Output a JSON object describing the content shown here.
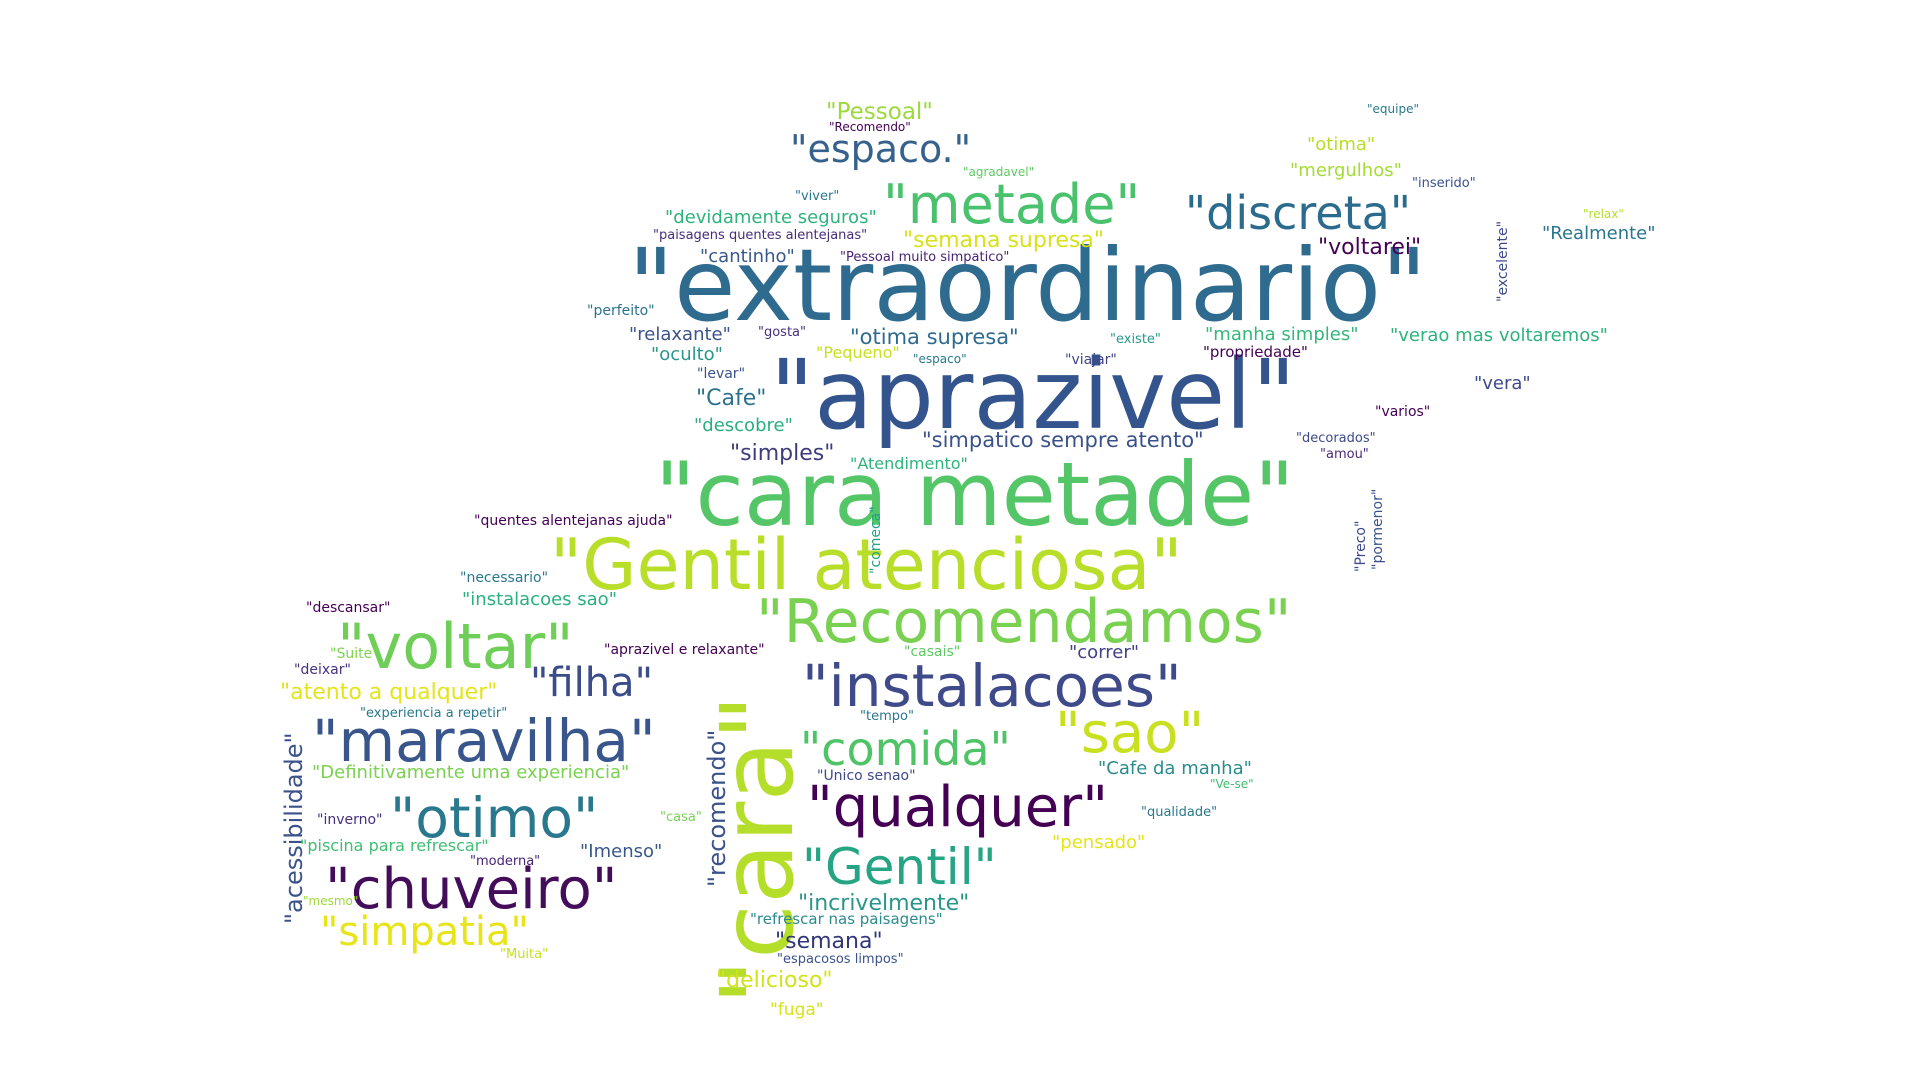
{
  "words": [
    {
      "text": "\"extraordinario\"",
      "color": "#2f6b8e"
    },
    {
      "text": "\"aprazivel\"",
      "color": "#33548c"
    },
    {
      "text": "\"cara metade\"",
      "color": "#55c667"
    },
    {
      "text": "\"Gentil atenciosa\"",
      "color": "#b8de29"
    },
    {
      "text": "\"Recomendamos\"",
      "color": "#7ad151"
    },
    {
      "text": "\"cara\"",
      "color": "#b5de2b"
    },
    {
      "text": "\"voltar\"",
      "color": "#6ece58"
    },
    {
      "text": "\"instalacoes\"",
      "color": "#3e4a89"
    },
    {
      "text": "\"maravilha\"",
      "color": "#39568c"
    },
    {
      "text": "\"qualquer\"",
      "color": "#440154"
    },
    {
      "text": "\"chuveiro\"",
      "color": "#440d5a"
    },
    {
      "text": "\"otimo\"",
      "color": "#2a788e"
    },
    {
      "text": "\"metade\"",
      "color": "#4ac16d"
    },
    {
      "text": "\"Gentil\"",
      "color": "#25a584"
    },
    {
      "text": "\"sao\"",
      "color": "#c8e020"
    },
    {
      "text": "\"discreta\"",
      "color": "#2b6b8e"
    },
    {
      "text": "\"comida\"",
      "color": "#4fc466"
    },
    {
      "text": "\"simpatia\"",
      "color": "#e7e419"
    },
    {
      "text": "\"filha\"",
      "color": "#3a4c8a"
    },
    {
      "text": "\"espaco.\"",
      "color": "#36618d"
    },
    {
      "text": "\"acessibilidade\"",
      "color": "#3b528b"
    },
    {
      "text": "\"recomendo\"",
      "color": "#3b528b"
    },
    {
      "text": "\"Pessoal\"",
      "color": "#9bd93c"
    },
    {
      "text": "\"incrivelmente\"",
      "color": "#2a968b"
    },
    {
      "text": "\"semana\"",
      "color": "#31357a"
    },
    {
      "text": "\"delicioso\"",
      "color": "#d2e21b"
    },
    {
      "text": "\"atento a qualquer\"",
      "color": "#e5e419"
    },
    {
      "text": "\"Cafe\"",
      "color": "#2c728e"
    },
    {
      "text": "\"simples\"",
      "color": "#3e3c7e"
    },
    {
      "text": "\"otima supresa\"",
      "color": "#2f6b8e"
    },
    {
      "text": "\"voltarei\"",
      "color": "#440256"
    },
    {
      "text": "\"semana supresa\"",
      "color": "#d8e219"
    },
    {
      "text": "\"simpatico sempre atento\"",
      "color": "#3a5289"
    },
    {
      "text": "\"Definitivamente uma experiencia\"",
      "color": "#7ad151"
    },
    {
      "text": "\"Cafe da manha\"",
      "color": "#2a8b8e"
    },
    {
      "text": "\"Imenso\"",
      "color": "#38588c"
    },
    {
      "text": "\"otima\"",
      "color": "#b8de29"
    },
    {
      "text": "\"mergulhos\"",
      "color": "#a5db36"
    },
    {
      "text": "\"devidamente seguros\"",
      "color": "#2eb37c"
    },
    {
      "text": "\"cantinho\"",
      "color": "#38588c"
    },
    {
      "text": "\"relaxante\"",
      "color": "#3b528b"
    },
    {
      "text": "\"oculto\"",
      "color": "#2a968b"
    },
    {
      "text": "\"manha simples\"",
      "color": "#35b779"
    },
    {
      "text": "\"verao mas voltaremos\"",
      "color": "#2db27d"
    },
    {
      "text": "\"Realmente\"",
      "color": "#2a768e"
    },
    {
      "text": "\"vera\"",
      "color": "#3e4989"
    },
    {
      "text": "\"descobre\"",
      "color": "#29af7f"
    },
    {
      "text": "\"instalacoes sao\"",
      "color": "#2ab07f"
    },
    {
      "text": "\"correr\"",
      "color": "#424086"
    },
    {
      "text": "\"pensado\"",
      "color": "#e5e419"
    },
    {
      "text": "\"piscina para refrescar\"",
      "color": "#40bd72"
    },
    {
      "text": "\"refrescar nas paisagens\"",
      "color": "#2c8a8e"
    },
    {
      "text": "\"fuga\"",
      "color": "#d8e219"
    },
    {
      "text": "\"Pequeno\"",
      "color": "#c8e020"
    },
    {
      "text": "\"Atendimento\"",
      "color": "#2eb37c"
    },
    {
      "text": "\"propriedade\"",
      "color": "#440154"
    },
    {
      "text": "\"quentes alentejanas ajuda\"",
      "color": "#440154"
    },
    {
      "text": "\"necessario\"",
      "color": "#2a788e"
    },
    {
      "text": "\"descansar\"",
      "color": "#440154"
    },
    {
      "text": "\"Suite\"",
      "color": "#7fd34e"
    },
    {
      "text": "\"deixar\"",
      "color": "#46337e"
    },
    {
      "text": "\"experiencia a repetir\"",
      "color": "#2a788e"
    },
    {
      "text": "\"inverno\"",
      "color": "#46307e"
    },
    {
      "text": "\"moderna\"",
      "color": "#482374"
    },
    {
      "text": "\"mesmo\"",
      "color": "#9dd93b"
    },
    {
      "text": "\"Muita\"",
      "color": "#c8e020"
    },
    {
      "text": "\"casa\"",
      "color": "#7ad151"
    },
    {
      "text": "\"aprazivel e relaxante\"",
      "color": "#440154"
    },
    {
      "text": "\"casais\"",
      "color": "#5cc863"
    },
    {
      "text": "\"tempo\"",
      "color": "#2a788e"
    },
    {
      "text": "\"Unico senao\"",
      "color": "#3e4a89"
    },
    {
      "text": "\"espacosos limpos\"",
      "color": "#3b528b"
    },
    {
      "text": "\"qualidade\"",
      "color": "#2a788e"
    },
    {
      "text": "\"Ve-se\"",
      "color": "#40bd72"
    },
    {
      "text": "\"comeca\"",
      "color": "#20a386"
    },
    {
      "text": "\"Preco\"",
      "color": "#3e4a89"
    },
    {
      "text": "\"pormenor\"",
      "color": "#3b528b"
    },
    {
      "text": "\"excelente\"",
      "color": "#3e4a89"
    },
    {
      "text": "\"varios\"",
      "color": "#440154"
    },
    {
      "text": "\"decorados\"",
      "color": "#3e4989"
    },
    {
      "text": "\"amou\"",
      "color": "#472d7b"
    },
    {
      "text": "\"viajar\"",
      "color": "#404688"
    },
    {
      "text": "\"espaco\"",
      "color": "#2a788e"
    },
    {
      "text": "\"existe\"",
      "color": "#2a968b"
    },
    {
      "text": "\"levar\"",
      "color": "#3b528b"
    },
    {
      "text": "\"gosta\"",
      "color": "#46307e"
    },
    {
      "text": "\"perfeito\"",
      "color": "#2c728e"
    },
    {
      "text": "\"Pessoal muito simpatico\"",
      "color": "#482475"
    },
    {
      "text": "\"paisagens quentes alentejanas\"",
      "color": "#472c7a"
    },
    {
      "text": "\"viver\"",
      "color": "#2a788e"
    },
    {
      "text": "\"agradavel\"",
      "color": "#5ec962"
    },
    {
      "text": "\"Recomendo\"",
      "color": "#440154"
    },
    {
      "text": "\"equipe\"",
      "color": "#2a788e"
    },
    {
      "text": "\"inserido\"",
      "color": "#3b528b"
    },
    {
      "text": "\"relax\"",
      "color": "#b5de2b"
    }
  ]
}
